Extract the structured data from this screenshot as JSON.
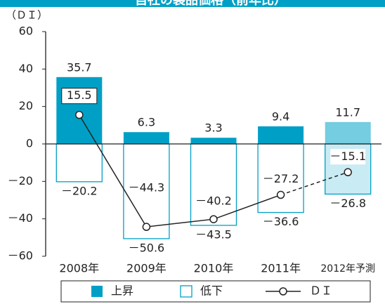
{
  "chart_data": {
    "type": "bar-line",
    "title": "自社の製品価格（前年比）",
    "y_axis_label": "（ＤＩ）",
    "categories": [
      "2008年",
      "2009年",
      "2010年",
      "2011年",
      "2012年予測"
    ],
    "series": [
      {
        "name": "上昇",
        "kind": "bar",
        "color": "#00a0c6",
        "colors": [
          "#00a0c6",
          "#00a0c6",
          "#00a0c6",
          "#00a0c6",
          "#74cde0"
        ],
        "values": [
          35.7,
          6.3,
          3.3,
          9.4,
          11.7
        ]
      },
      {
        "name": "低下",
        "kind": "bar-outline",
        "color": "#00a0c6",
        "fills": [
          "#ffffff",
          "#ffffff",
          "#ffffff",
          "#ffffff",
          "#c9ebf3"
        ],
        "values": [
          -20.2,
          -50.6,
          -43.5,
          -36.6,
          -26.8
        ],
        "value_labels": [
          "－20.2",
          "－50.6",
          "－43.5",
          "－36.6",
          "－26.8"
        ]
      },
      {
        "name": "ＤＩ",
        "kind": "line",
        "color": "#222222",
        "values": [
          15.5,
          -44.3,
          -40.2,
          -27.2,
          -15.1
        ],
        "value_labels": [
          "15.5",
          "－44.3",
          "－40.2",
          "－27.2",
          "－15.1"
        ]
      }
    ],
    "ylim": [
      -60,
      60
    ],
    "yticks": [
      {
        "value": -60,
        "label": "－60"
      },
      {
        "value": -40,
        "label": "－40"
      },
      {
        "value": -20,
        "label": "－20"
      },
      0,
      20,
      40,
      60
    ],
    "legend": "bottom"
  }
}
